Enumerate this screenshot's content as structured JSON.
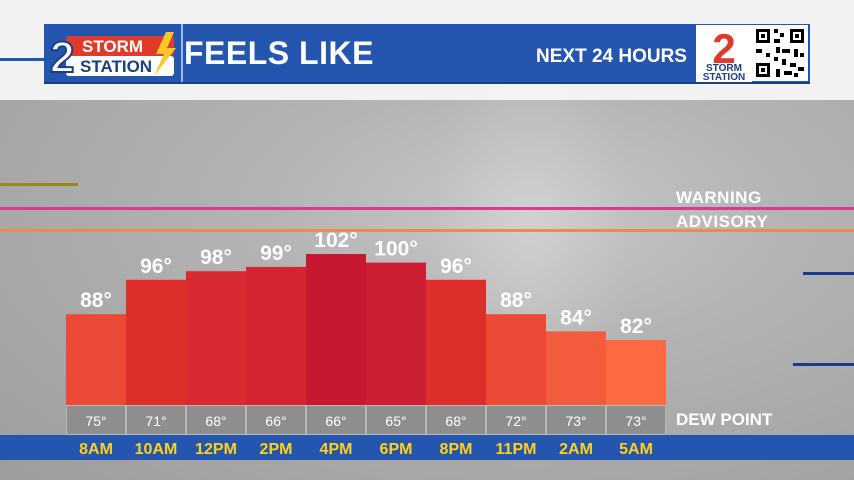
{
  "header": {
    "logo_left_top": "STORM",
    "logo_left_bottom": "STATION",
    "logo_left_number": "2",
    "title": "FEELS LIKE",
    "subtitle": "NEXT 24 HOURS",
    "logo_right_number": "2",
    "logo_right_top": "STORM",
    "logo_right_bottom": "STATION"
  },
  "thresholds": {
    "warning_label": "WARNING",
    "warning_color": "#d63c8f",
    "advisory_label": "ADVISORY",
    "advisory_color": "#f08a4b"
  },
  "dew_point_label": "DEW POINT",
  "chart_data": {
    "type": "bar",
    "categories": [
      "8AM",
      "10AM",
      "12PM",
      "2PM",
      "4PM",
      "6PM",
      "8PM",
      "11PM",
      "2AM",
      "5AM"
    ],
    "values": [
      88,
      96,
      98,
      99,
      102,
      100,
      96,
      88,
      84,
      82
    ],
    "value_labels": [
      "88°",
      "96°",
      "98°",
      "99°",
      "102°",
      "100°",
      "96°",
      "88°",
      "84°",
      "82°"
    ],
    "dew_points": [
      "75°",
      "71°",
      "68°",
      "66°",
      "66°",
      "65°",
      "68°",
      "72°",
      "73°",
      "73°"
    ],
    "bar_colors": [
      "#ec4a37",
      "#dc2f2c",
      "#d92a32",
      "#d52533",
      "#c8182f",
      "#cc1f33",
      "#dc2f2c",
      "#ec4a37",
      "#f25c3d",
      "#fb6a41"
    ],
    "label_color": "#ffffff",
    "time_label_color": "#ffd11a"
  }
}
